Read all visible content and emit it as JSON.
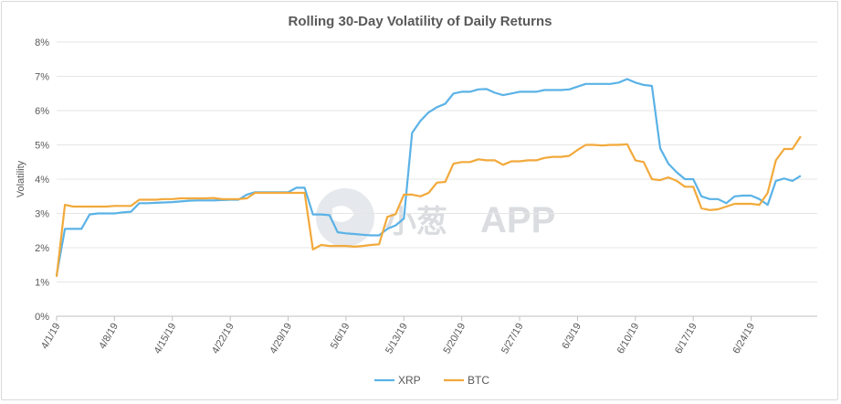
{
  "chart_data": {
    "type": "line",
    "title": "Rolling 30-Day Volatility of Daily Returns",
    "xlabel": "",
    "ylabel": "Volatility",
    "ylim": [
      0,
      8
    ],
    "y_ticks": [
      0,
      1,
      2,
      3,
      4,
      5,
      6,
      7,
      8
    ],
    "y_tick_labels": [
      "0%",
      "1%",
      "2%",
      "3%",
      "4%",
      "5%",
      "6%",
      "7%",
      "8%"
    ],
    "x_tick_labels": [
      "4/1/19",
      "4/8/19",
      "4/15/19",
      "4/22/19",
      "4/29/19",
      "5/6/19",
      "5/13/19",
      "5/20/19",
      "5/27/19",
      "6/3/19",
      "6/10/19",
      "6/17/19",
      "6/24/19"
    ],
    "x_tick_days": [
      0,
      7,
      14,
      21,
      28,
      35,
      42,
      49,
      56,
      63,
      70,
      77,
      84
    ],
    "x_range_days": [
      0,
      92
    ],
    "grid": "horizontal",
    "legend_position": "bottom",
    "series": [
      {
        "name": "XRP",
        "color": "#5bb2e6",
        "x": [
          0,
          1,
          2,
          3,
          4,
          5,
          6,
          7,
          8,
          9,
          10,
          11,
          12,
          13,
          14,
          15,
          16,
          17,
          18,
          19,
          20,
          21,
          22,
          23,
          24,
          25,
          26,
          27,
          28,
          29,
          30,
          31,
          32,
          33,
          34,
          35,
          36,
          37,
          38,
          39,
          40,
          41,
          42,
          43,
          44,
          45,
          46,
          47,
          48,
          49,
          50,
          51,
          52,
          53,
          54,
          55,
          56,
          57,
          58,
          59,
          60,
          61,
          62,
          63,
          64,
          65,
          66,
          67,
          68,
          69,
          70,
          71,
          72,
          73,
          74,
          75,
          76,
          77,
          78,
          79,
          80,
          81,
          82,
          83,
          84,
          85,
          86,
          87,
          88,
          89,
          90
        ],
        "values": [
          1.2,
          2.55,
          2.55,
          2.55,
          2.97,
          3.0,
          3.0,
          3.0,
          3.03,
          3.05,
          3.3,
          3.3,
          3.31,
          3.32,
          3.33,
          3.35,
          3.37,
          3.38,
          3.38,
          3.38,
          3.39,
          3.4,
          3.4,
          3.55,
          3.62,
          3.62,
          3.62,
          3.62,
          3.62,
          3.75,
          3.75,
          2.97,
          2.97,
          2.95,
          2.45,
          2.42,
          2.4,
          2.38,
          2.36,
          2.36,
          2.55,
          2.65,
          2.85,
          5.35,
          5.7,
          5.95,
          6.1,
          6.2,
          6.5,
          6.55,
          6.55,
          6.62,
          6.63,
          6.52,
          6.45,
          6.5,
          6.55,
          6.55,
          6.55,
          6.6,
          6.6,
          6.6,
          6.62,
          6.7,
          6.78,
          6.78,
          6.78,
          6.78,
          6.82,
          6.92,
          6.82,
          6.75,
          6.72,
          4.9,
          4.45,
          4.2,
          4.0,
          4.0,
          3.5,
          3.42,
          3.42,
          3.3,
          3.5,
          3.52,
          3.52,
          3.42,
          3.25,
          3.95,
          4.02,
          3.95,
          4.1
        ]
      },
      {
        "name": "BTC",
        "color": "#f2a93b",
        "x": [
          0,
          1,
          2,
          3,
          4,
          5,
          6,
          7,
          8,
          9,
          10,
          11,
          12,
          13,
          14,
          15,
          16,
          17,
          18,
          19,
          20,
          21,
          22,
          23,
          24,
          25,
          26,
          27,
          28,
          29,
          30,
          31,
          32,
          33,
          34,
          35,
          36,
          37,
          38,
          39,
          40,
          41,
          42,
          43,
          44,
          45,
          46,
          47,
          48,
          49,
          50,
          51,
          52,
          53,
          54,
          55,
          56,
          57,
          58,
          59,
          60,
          61,
          62,
          63,
          64,
          65,
          66,
          67,
          68,
          69,
          70,
          71,
          72,
          73,
          74,
          75,
          76,
          77,
          78,
          79,
          80,
          81,
          82,
          83,
          84,
          85,
          86,
          87,
          88,
          89,
          90
        ],
        "values": [
          1.15,
          3.25,
          3.2,
          3.2,
          3.2,
          3.2,
          3.2,
          3.22,
          3.22,
          3.22,
          3.4,
          3.4,
          3.4,
          3.42,
          3.42,
          3.44,
          3.44,
          3.44,
          3.44,
          3.45,
          3.42,
          3.42,
          3.42,
          3.44,
          3.6,
          3.6,
          3.6,
          3.6,
          3.6,
          3.6,
          3.6,
          1.95,
          2.08,
          2.05,
          2.05,
          2.05,
          2.03,
          2.05,
          2.08,
          2.1,
          2.9,
          2.98,
          3.55,
          3.55,
          3.5,
          3.6,
          3.9,
          3.92,
          4.45,
          4.5,
          4.5,
          4.58,
          4.55,
          4.55,
          4.42,
          4.52,
          4.52,
          4.55,
          4.55,
          4.62,
          4.65,
          4.65,
          4.68,
          4.85,
          5.0,
          5.0,
          4.98,
          5.0,
          5.0,
          5.02,
          4.55,
          4.5,
          4.0,
          3.97,
          4.05,
          3.95,
          3.78,
          3.78,
          3.15,
          3.1,
          3.12,
          3.2,
          3.28,
          3.28,
          3.28,
          3.25,
          3.6,
          4.55,
          4.88,
          4.88,
          5.25
        ]
      }
    ]
  },
  "watermark": {
    "text": "APP",
    "logo_text": "小葱"
  }
}
